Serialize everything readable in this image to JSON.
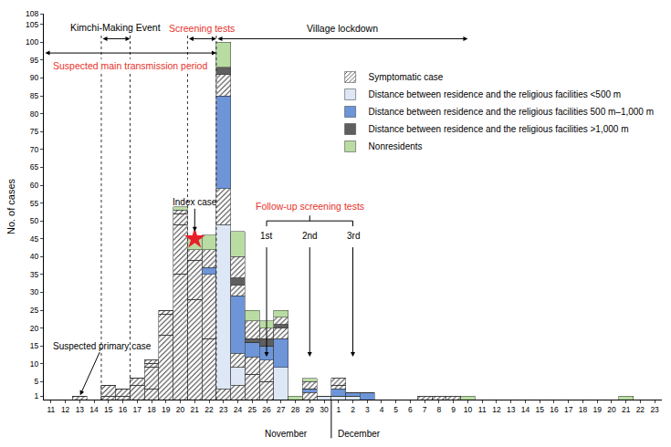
{
  "chart_data": {
    "type": "bar",
    "y_label": "No. of cases",
    "categories": [
      "11",
      "12",
      "13",
      "14",
      "15",
      "16",
      "17",
      "18",
      "19",
      "20",
      "21",
      "22",
      "23",
      "24",
      "25",
      "26",
      "27",
      "28",
      "29",
      "30",
      "1",
      "2",
      "3",
      "4",
      "5",
      "6",
      "7",
      "8",
      "9",
      "10",
      "11",
      "12",
      "13",
      "14",
      "15",
      "16",
      "17",
      "18",
      "19",
      "20",
      "21",
      "22",
      "23"
    ],
    "x_groups": [
      {
        "label": "November",
        "count": 20
      },
      {
        "label": "December",
        "count": 23
      }
    ],
    "stacked": true,
    "grid": false,
    "legend": "upper right",
    "ylim": [
      0,
      108
    ],
    "yticks": [
      1,
      5,
      10,
      15,
      20,
      25,
      30,
      35,
      40,
      45,
      50,
      55,
      60,
      65,
      70,
      75,
      80,
      85,
      90,
      95,
      100,
      105,
      108
    ],
    "series": [
      {
        "name": "Symptomatic case",
        "color": "#dde7f5",
        "marker": "hatched",
        "values": [
          0,
          0,
          1,
          0,
          1,
          1,
          4,
          3,
          18,
          35,
          28,
          17,
          3,
          4,
          7,
          5,
          0,
          0,
          0,
          0,
          0,
          0,
          0,
          0,
          0,
          0,
          0,
          0,
          0,
          0,
          0,
          0,
          0,
          0,
          0,
          0,
          0,
          0,
          0,
          0,
          0,
          0,
          0
        ]
      },
      {
        "name": "Distance between residence and the religious facilities <500 m",
        "color": "#dde7f5",
        "values": [
          0,
          0,
          0,
          0,
          0,
          0,
          0,
          0,
          0,
          0,
          0,
          0,
          46,
          5,
          0,
          0,
          9,
          0,
          0,
          1,
          1,
          1,
          0,
          0,
          0,
          0,
          0,
          0,
          0,
          0,
          0,
          0,
          0,
          0,
          0,
          0,
          0,
          0,
          0,
          0,
          0,
          0,
          0
        ]
      },
      {
        "name": "Symptomatic case",
        "color": "#6d95d8",
        "marker": "hatched",
        "values": [
          0,
          0,
          0,
          0,
          3,
          2,
          2,
          6,
          6,
          14,
          11,
          18,
          10,
          4,
          5,
          6,
          0,
          0,
          2,
          0,
          0,
          0,
          0,
          0,
          0,
          0,
          0,
          0,
          0,
          0,
          0,
          0,
          0,
          0,
          0,
          0,
          0,
          0,
          0,
          0,
          0,
          0,
          0
        ]
      },
      {
        "name": "Distance between residence and the religious facilities 500 m–1,000 m",
        "color": "#6d95d8",
        "values": [
          0,
          0,
          0,
          0,
          0,
          0,
          0,
          0,
          0,
          0,
          0,
          2,
          26,
          16,
          4,
          4,
          8,
          0,
          1,
          0,
          2,
          1,
          2,
          0,
          0,
          0,
          0,
          0,
          0,
          0,
          0,
          0,
          0,
          0,
          0,
          0,
          0,
          0,
          0,
          0,
          0,
          0,
          0
        ]
      },
      {
        "name": "Symptomatic case",
        "color": "#5f5f5f",
        "marker": "hatched",
        "values": [
          0,
          0,
          0,
          0,
          0,
          0,
          0,
          1,
          1,
          3,
          3,
          5,
          6,
          3,
          0,
          0,
          3,
          0,
          0,
          0,
          1,
          0,
          0,
          0,
          0,
          0,
          0,
          0,
          0,
          0,
          0,
          0,
          0,
          0,
          0,
          0,
          0,
          0,
          0,
          0,
          0,
          0,
          0
        ]
      },
      {
        "name": "Distance between residence and the religious facilities >1,000 m",
        "color": "#5f5f5f",
        "values": [
          0,
          0,
          0,
          0,
          0,
          0,
          0,
          0,
          0,
          0,
          0,
          0,
          2,
          2,
          1,
          2,
          1,
          0,
          0,
          0,
          0,
          0,
          0,
          0,
          0,
          0,
          0,
          0,
          0,
          0,
          0,
          0,
          0,
          0,
          0,
          0,
          0,
          0,
          0,
          0,
          0,
          0,
          0
        ]
      },
      {
        "name": "Symptomatic case",
        "color": "#b9dca3",
        "marker": "hatched",
        "values": [
          0,
          0,
          0,
          0,
          0,
          0,
          0,
          1,
          0,
          1,
          0,
          0,
          0,
          6,
          5,
          3,
          2,
          0,
          2,
          0,
          2,
          0,
          0,
          0,
          0,
          0,
          1,
          1,
          1,
          0,
          0,
          0,
          0,
          0,
          0,
          0,
          0,
          0,
          0,
          0,
          0,
          0,
          0
        ]
      },
      {
        "name": "Nonresidents",
        "color": "#b9dca3",
        "values": [
          0,
          0,
          0,
          0,
          0,
          0,
          0,
          0,
          0,
          1,
          3,
          4,
          7,
          7,
          3,
          2,
          2,
          1,
          1,
          0,
          0,
          0,
          0,
          0,
          0,
          0,
          0,
          0,
          0,
          1,
          0,
          0,
          0,
          0,
          0,
          0,
          0,
          0,
          0,
          0,
          1,
          0,
          0
        ]
      }
    ],
    "periods": [
      {
        "text": "Kimchi-Making Event",
        "from": 3.5,
        "to": 5.5,
        "line_style": "dotted"
      },
      {
        "text": "Screening tests",
        "from": 9.5,
        "to": 11.5,
        "line_style": "dotted",
        "color": "#e8322a"
      },
      {
        "text": "Village lockdown",
        "from": 11.5,
        "to": 29
      },
      {
        "text": "Suspected main transmission period",
        "from": -0.5,
        "to": 11.5,
        "color": "#e8322a"
      }
    ],
    "points": [
      {
        "text": "Suspected primary case",
        "x": 2,
        "y": 1
      },
      {
        "text": "Index case",
        "x": 10,
        "y": 45,
        "marker": "star",
        "color": "#e8202a"
      }
    ],
    "follow_up": {
      "text": "Follow-up screening tests",
      "color": "#e8322a",
      "items": [
        {
          "text": "1st",
          "x": 15
        },
        {
          "text": "2nd",
          "x": 18
        },
        {
          "text": "3rd",
          "x": 21
        }
      ]
    }
  }
}
